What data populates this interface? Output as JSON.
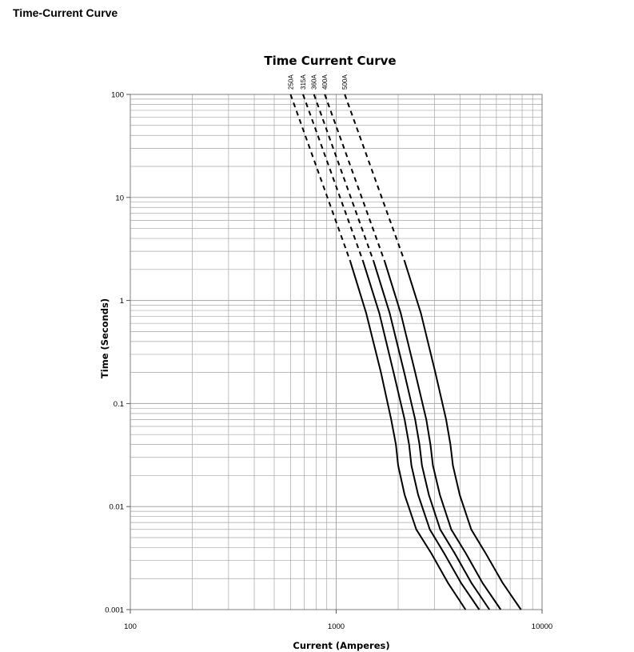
{
  "heading": "Time-Current Curve",
  "chart_data": {
    "type": "line",
    "title": "Time Current Curve",
    "xlabel": "Current (Amperes)",
    "ylabel": "Time (Seconds)",
    "x_scale": "log",
    "y_scale": "log",
    "xlim": [
      100,
      10000
    ],
    "ylim": [
      0.001,
      100
    ],
    "x_ticks": [
      100,
      1000,
      10000
    ],
    "x_tick_labels": [
      "100",
      "1000",
      "10000"
    ],
    "y_ticks": [
      100,
      10,
      1,
      0.1,
      0.01,
      0.001
    ],
    "y_tick_labels": [
      "100",
      "10",
      "1",
      "0.1",
      "0.01",
      "0.001"
    ],
    "grid": true,
    "line_color": "#000000",
    "grid_color": "#a6a6a6",
    "series": [
      {
        "name": "250A",
        "dashed": [
          [
            600,
            100
          ],
          [
            1170,
            2.4
          ]
        ],
        "solid": [
          [
            1170,
            2.4
          ],
          [
            1400,
            0.75
          ],
          [
            1650,
            0.2
          ],
          [
            1850,
            0.07
          ],
          [
            1950,
            0.04
          ],
          [
            2000,
            0.025
          ],
          [
            2150,
            0.013
          ],
          [
            2450,
            0.006
          ],
          [
            2900,
            0.0035
          ],
          [
            3500,
            0.0018
          ],
          [
            4250,
            0.001
          ]
        ]
      },
      {
        "name": "315A",
        "dashed": [
          [
            690,
            100
          ],
          [
            1350,
            2.4
          ]
        ],
        "solid": [
          [
            1350,
            2.4
          ],
          [
            1620,
            0.75
          ],
          [
            1900,
            0.2
          ],
          [
            2150,
            0.07
          ],
          [
            2260,
            0.04
          ],
          [
            2320,
            0.025
          ],
          [
            2500,
            0.013
          ],
          [
            2850,
            0.006
          ],
          [
            3350,
            0.0035
          ],
          [
            4050,
            0.0018
          ],
          [
            4950,
            0.001
          ]
        ]
      },
      {
        "name": "360A",
        "dashed": [
          [
            780,
            100
          ],
          [
            1520,
            2.4
          ]
        ],
        "solid": [
          [
            1520,
            2.4
          ],
          [
            1820,
            0.75
          ],
          [
            2140,
            0.2
          ],
          [
            2420,
            0.07
          ],
          [
            2540,
            0.04
          ],
          [
            2610,
            0.025
          ],
          [
            2820,
            0.013
          ],
          [
            3200,
            0.006
          ],
          [
            3770,
            0.0035
          ],
          [
            4550,
            0.0018
          ],
          [
            5550,
            0.001
          ]
        ]
      },
      {
        "name": "400A",
        "dashed": [
          [
            880,
            100
          ],
          [
            1720,
            2.4
          ]
        ],
        "solid": [
          [
            1720,
            2.4
          ],
          [
            2060,
            0.75
          ],
          [
            2420,
            0.2
          ],
          [
            2740,
            0.07
          ],
          [
            2870,
            0.04
          ],
          [
            2950,
            0.025
          ],
          [
            3190,
            0.013
          ],
          [
            3620,
            0.006
          ],
          [
            4270,
            0.0035
          ],
          [
            5150,
            0.0018
          ],
          [
            6300,
            0.001
          ]
        ]
      },
      {
        "name": "500A",
        "dashed": [
          [
            1100,
            100
          ],
          [
            2150,
            2.4
          ]
        ],
        "solid": [
          [
            2150,
            2.4
          ],
          [
            2580,
            0.75
          ],
          [
            3030,
            0.2
          ],
          [
            3420,
            0.07
          ],
          [
            3590,
            0.04
          ],
          [
            3690,
            0.025
          ],
          [
            3980,
            0.013
          ],
          [
            4530,
            0.006
          ],
          [
            5330,
            0.0035
          ],
          [
            6450,
            0.0018
          ],
          [
            7900,
            0.001
          ]
        ]
      }
    ]
  }
}
